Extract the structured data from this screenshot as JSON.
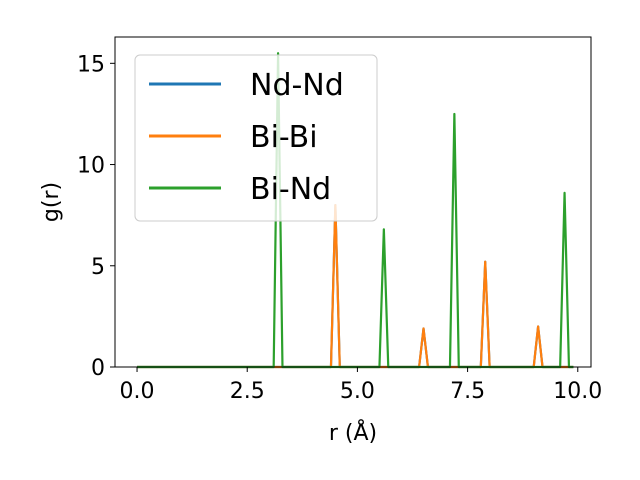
{
  "chart_data": {
    "type": "line",
    "xlabel": "r (Å)",
    "ylabel": "g(r)",
    "xlim": [
      -0.5,
      10.3
    ],
    "ylim": [
      0,
      16.3
    ],
    "xticks": [
      0.0,
      2.5,
      5.0,
      7.5,
      10.0
    ],
    "xtick_labels": [
      "0.0",
      "2.5",
      "5.0",
      "7.5",
      "10.0"
    ],
    "yticks": [
      0,
      5,
      10,
      15
    ],
    "ytick_labels": [
      "0",
      "5",
      "10",
      "15"
    ],
    "grid": false,
    "legend_position": "upper-left",
    "series": [
      {
        "name": "Nd-Nd",
        "color": "#1f77b4",
        "x": [
          0.0,
          4.4,
          4.5,
          4.6,
          6.4,
          6.5,
          6.6,
          7.8,
          7.9,
          8.0,
          9.0,
          9.1,
          9.2,
          9.9
        ],
        "y": [
          0,
          0,
          8.0,
          0,
          0,
          1.9,
          0,
          0,
          5.2,
          0,
          0,
          2.0,
          0,
          0
        ]
      },
      {
        "name": "Bi-Bi",
        "color": "#ff7f0e",
        "x": [
          0.0,
          4.4,
          4.5,
          4.6,
          6.4,
          6.5,
          6.6,
          7.8,
          7.9,
          8.0,
          9.0,
          9.1,
          9.2,
          9.9
        ],
        "y": [
          0,
          0,
          8.0,
          0,
          0,
          1.9,
          0,
          0,
          5.2,
          0,
          0,
          2.0,
          0,
          0
        ]
      },
      {
        "name": "Bi-Nd",
        "color": "#2ca02c",
        "x": [
          0.0,
          3.1,
          3.2,
          3.3,
          5.5,
          5.6,
          5.7,
          7.1,
          7.2,
          7.3,
          9.6,
          9.7,
          9.8,
          9.9
        ],
        "y": [
          0,
          0,
          15.5,
          0,
          0,
          6.8,
          0,
          0,
          12.5,
          0,
          0,
          8.6,
          0,
          0
        ]
      }
    ]
  }
}
